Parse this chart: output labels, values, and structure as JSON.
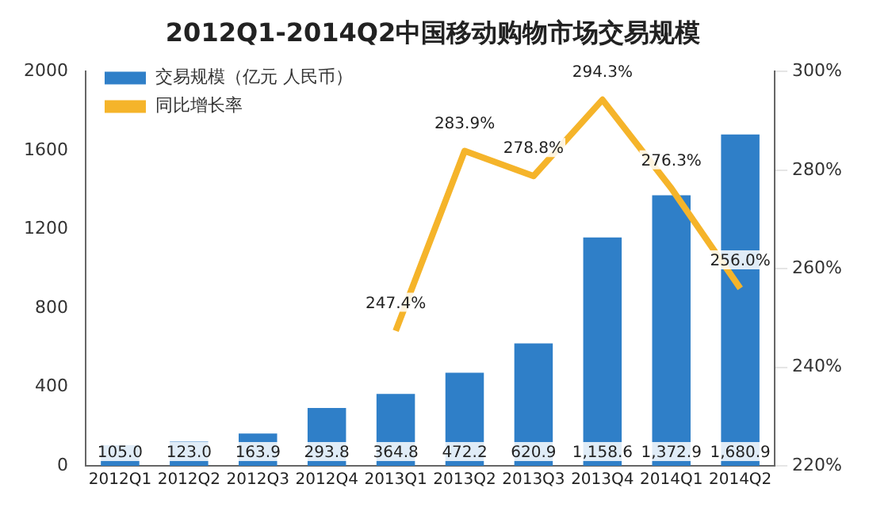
{
  "chart_data": {
    "type": "bar",
    "title": "2012Q1-2014Q2中国移动购物市场交易规模",
    "categories": [
      "2012Q1",
      "2012Q2",
      "2012Q3",
      "2012Q4",
      "2013Q1",
      "2013Q2",
      "2013Q3",
      "2013Q4",
      "2014Q1",
      "2014Q2"
    ],
    "series": [
      {
        "name": "交易规模（亿元 人民币）",
        "color": "#2f7fc8",
        "values": [
          105.0,
          123.0,
          163.9,
          293.8,
          364.8,
          472.2,
          620.9,
          1158.6,
          1372.9,
          1680.9
        ],
        "value_labels": [
          "105.0",
          "123.0",
          "163.9",
          "293.8",
          "364.8",
          "472.2",
          "620.9",
          "1,158.6",
          "1,372.9",
          "1,680.9"
        ]
      },
      {
        "name": "同比增长率",
        "type": "line",
        "axis": "y2",
        "color": "#f5b42a",
        "values": [
          null,
          null,
          null,
          null,
          247.4,
          283.9,
          278.8,
          294.3,
          276.3,
          256.0
        ],
        "value_labels": [
          null,
          null,
          null,
          null,
          "247.4%",
          "283.9%",
          "278.8%",
          "294.3%",
          "276.3%",
          "256.0%"
        ]
      }
    ],
    "ylim": [
      0,
      2000
    ],
    "yticks": [
      0,
      400,
      800,
      1200,
      1600,
      2000
    ],
    "y2lim": [
      220,
      300
    ],
    "y2ticks": [
      {
        "value": 220,
        "label": "220%"
      },
      {
        "value": 240,
        "label": "240%"
      },
      {
        "value": 260,
        "label": "260%"
      },
      {
        "value": 280,
        "label": "280%"
      },
      {
        "value": 300,
        "label": "300%"
      }
    ],
    "legend": "top left",
    "grid": false,
    "marker": "none"
  }
}
